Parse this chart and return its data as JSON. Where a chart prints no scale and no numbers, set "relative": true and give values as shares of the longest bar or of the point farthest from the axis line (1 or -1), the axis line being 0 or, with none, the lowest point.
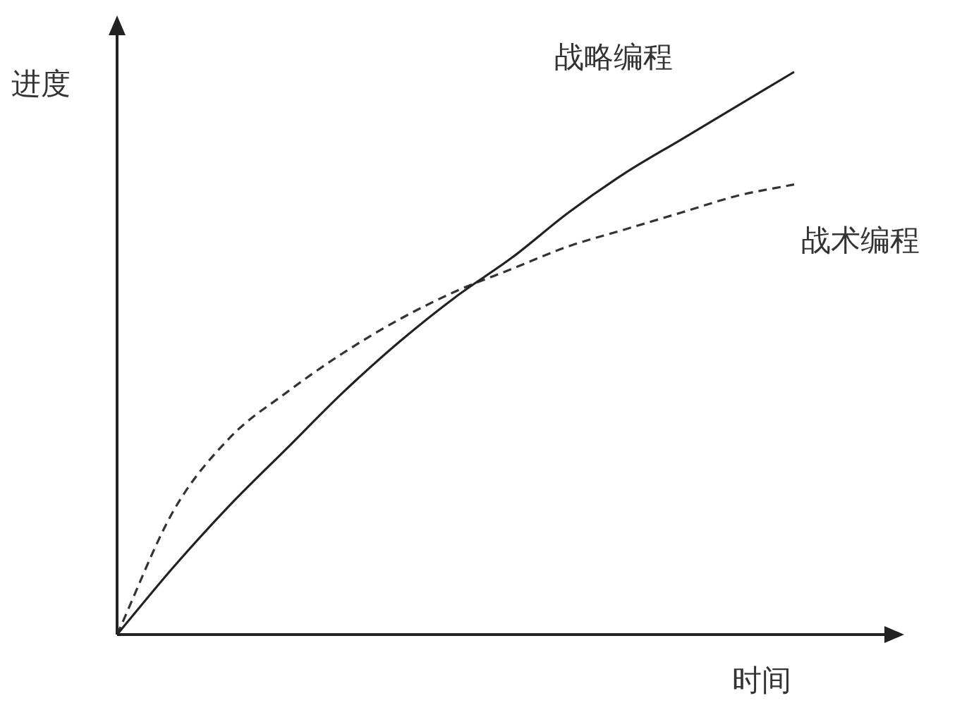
{
  "chart_data": {
    "type": "line",
    "relative": true,
    "xlabel": "时间",
    "ylabel": "进度",
    "legend": false,
    "marker": "none",
    "categories": [
      null,
      null,
      null,
      null,
      null,
      null,
      null,
      null,
      null,
      null,
      null,
      null,
      null
    ],
    "series": [
      {
        "name": "战略编程",
        "color": "#222222",
        "line_style": "solid",
        "values": [
          0,
          0.12,
          0.23,
          0.33,
          0.43,
          0.52,
          0.6,
          0.67,
          0.75,
          0.82,
          0.88,
          0.94,
          1
        ]
      },
      {
        "name": "战术编程",
        "color": "#333333",
        "line_style": "dashed",
        "values": [
          0,
          0.22,
          0.35,
          0.43,
          0.5,
          0.56,
          0.61,
          0.65,
          0.69,
          0.72,
          0.75,
          0.78,
          0.8
        ]
      }
    ]
  }
}
